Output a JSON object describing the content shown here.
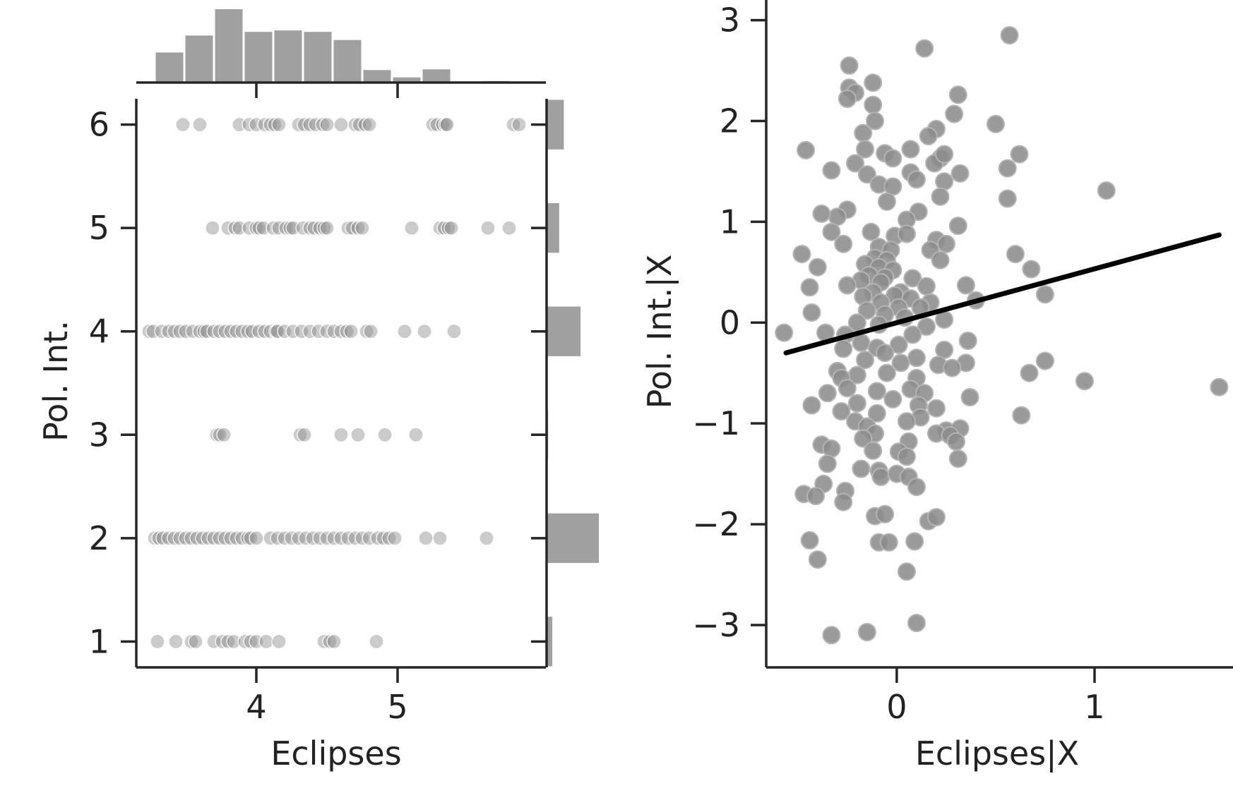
{
  "colors": {
    "axis": "#262626",
    "marker": "#8c8c8c",
    "marker_edge": "#9a9a9a",
    "hist": "#a0a0a0",
    "fit_line": "#000000"
  },
  "chart_data": [
    {
      "type": "scatter",
      "panel": "jointplot",
      "xlabel": "Eclipses",
      "ylabel": "Pol. Int.",
      "xlim": [
        3.15,
        6.05
      ],
      "ylim": [
        0.75,
        6.25
      ],
      "xticks": [
        4,
        5
      ],
      "xtick_labels": [
        "4",
        "5"
      ],
      "yticks": [
        1,
        2,
        3,
        4,
        5,
        6
      ],
      "ytick_labels": [
        "1",
        "2",
        "3",
        "4",
        "5",
        "6"
      ],
      "alpha": 0.45,
      "points": {
        "6": [
          3.48,
          3.6,
          3.88,
          3.95,
          4.0,
          4.06,
          4.1,
          4.13,
          4.16,
          4.3,
          4.34,
          4.38,
          4.42,
          4.47,
          4.5,
          4.6,
          4.7,
          4.73,
          4.77,
          4.8,
          5.25,
          5.28,
          5.32,
          5.34,
          5.35,
          5.82,
          5.86
        ],
        "5": [
          3.69,
          3.8,
          3.85,
          3.88,
          3.95,
          4.0,
          4.02,
          4.05,
          4.12,
          4.16,
          4.21,
          4.24,
          4.26,
          4.33,
          4.38,
          4.41,
          4.45,
          4.48,
          4.5,
          4.65,
          4.68,
          4.72,
          4.75,
          5.1,
          5.3,
          5.33,
          5.36,
          5.38,
          5.64,
          5.79
        ],
        "4": [
          3.24,
          3.27,
          3.33,
          3.38,
          3.42,
          3.46,
          3.5,
          3.55,
          3.6,
          3.63,
          3.65,
          3.7,
          3.74,
          3.78,
          3.82,
          3.86,
          3.9,
          3.94,
          3.97,
          4.02,
          4.06,
          4.1,
          4.14,
          4.15,
          4.2,
          4.26,
          4.32,
          4.38,
          4.44,
          4.5,
          4.55,
          4.6,
          4.64,
          4.67,
          4.78,
          4.81,
          5.05,
          5.19,
          5.4
        ],
        "3": [
          3.72,
          3.74,
          3.77,
          4.31,
          4.34,
          4.6,
          4.72,
          4.91,
          5.13
        ],
        "2": [
          3.28,
          3.31,
          3.34,
          3.38,
          3.42,
          3.46,
          3.5,
          3.54,
          3.58,
          3.62,
          3.66,
          3.7,
          3.74,
          3.78,
          3.82,
          3.86,
          3.9,
          3.94,
          3.96,
          4.0,
          4.1,
          4.15,
          4.2,
          4.25,
          4.3,
          4.35,
          4.4,
          4.45,
          4.5,
          4.55,
          4.6,
          4.65,
          4.7,
          4.75,
          4.8,
          4.86,
          4.9,
          4.94,
          4.98,
          5.2,
          5.3,
          5.63
        ],
        "1": [
          3.3,
          3.43,
          3.54,
          3.57,
          3.7,
          3.76,
          3.8,
          3.84,
          3.92,
          3.96,
          4.0,
          4.07,
          4.16,
          4.48,
          4.52,
          4.55,
          4.85
        ]
      },
      "marginal_x": {
        "bins": [
          3.28,
          3.49,
          3.7,
          3.91,
          4.12,
          4.33,
          4.54,
          4.75,
          4.96,
          5.17,
          5.38,
          5.59,
          5.8,
          6.01
        ],
        "heights": [
          0.41,
          0.64,
          1.0,
          0.69,
          0.71,
          0.69,
          0.58,
          0.17,
          0.07,
          0.18,
          0.0,
          0.02,
          0.0
        ]
      },
      "marginal_y": {
        "bins": [
          0.75,
          1.25,
          1.75,
          2.25,
          2.75,
          3.25,
          3.75,
          4.25,
          4.75,
          5.25,
          5.75,
          6.25
        ],
        "heights": [
          0.11,
          0.0,
          1.0,
          0.0,
          0.03,
          0.0,
          0.65,
          0.0,
          0.24,
          0.0,
          0.33
        ]
      }
    },
    {
      "type": "scatter",
      "panel": "partial-regression",
      "xlabel": "Eclipses|X",
      "ylabel": "Pol. Int.|X",
      "xlim": [
        -0.66,
        1.7
      ],
      "ylim": [
        -3.42,
        3.2
      ],
      "xticks": [
        0,
        1
      ],
      "xtick_labels": [
        "0",
        "1"
      ],
      "yticks": [
        -3,
        -2,
        -1,
        0,
        1,
        2,
        3
      ],
      "ytick_labels": [
        "−3",
        "−2",
        "−1",
        "0",
        "1",
        "2",
        "3"
      ],
      "fit_line": {
        "x": [
          -0.56,
          1.63
        ],
        "y": [
          -0.3,
          0.87
        ]
      },
      "points": [
        [
          0.57,
          2.85
        ],
        [
          0.14,
          2.72
        ],
        [
          -0.24,
          2.55
        ],
        [
          -0.12,
          2.38
        ],
        [
          -0.24,
          2.33
        ],
        [
          -0.21,
          2.28
        ],
        [
          -0.25,
          2.22
        ],
        [
          -0.12,
          2.16
        ],
        [
          0.31,
          2.26
        ],
        [
          -0.11,
          2.0
        ],
        [
          0.29,
          2.07
        ],
        [
          0.5,
          1.97
        ],
        [
          0.2,
          1.92
        ],
        [
          0.16,
          1.85
        ],
        [
          -0.17,
          1.88
        ],
        [
          -0.46,
          1.71
        ],
        [
          -0.16,
          1.72
        ],
        [
          0.07,
          1.72
        ],
        [
          -0.06,
          1.68
        ],
        [
          -0.02,
          1.63
        ],
        [
          0.22,
          1.63
        ],
        [
          0.19,
          1.58
        ],
        [
          0.24,
          1.67
        ],
        [
          0.62,
          1.67
        ],
        [
          0.56,
          1.53
        ],
        [
          -0.21,
          1.58
        ],
        [
          -0.33,
          1.51
        ],
        [
          0.07,
          1.49
        ],
        [
          0.1,
          1.42
        ],
        [
          0.32,
          1.48
        ],
        [
          -0.15,
          1.47
        ],
        [
          -0.09,
          1.37
        ],
        [
          -0.02,
          1.35
        ],
        [
          0.24,
          1.4
        ],
        [
          1.06,
          1.31
        ],
        [
          0.22,
          1.25
        ],
        [
          0.56,
          1.23
        ],
        [
          -0.05,
          1.2
        ],
        [
          -0.25,
          1.12
        ],
        [
          -0.3,
          1.05
        ],
        [
          -0.38,
          1.08
        ],
        [
          0.11,
          1.1
        ],
        [
          0.05,
          1.02
        ],
        [
          0.31,
          0.96
        ],
        [
          -0.33,
          0.9
        ],
        [
          -0.13,
          0.9
        ],
        [
          -0.01,
          0.86
        ],
        [
          0.05,
          0.88
        ],
        [
          0.2,
          0.82
        ],
        [
          0.25,
          0.78
        ],
        [
          -0.27,
          0.78
        ],
        [
          -0.09,
          0.75
        ],
        [
          -0.03,
          0.72
        ],
        [
          0.17,
          0.72
        ],
        [
          -0.48,
          0.68
        ],
        [
          0.6,
          0.68
        ],
        [
          0.22,
          0.62
        ],
        [
          -0.11,
          0.64
        ],
        [
          -0.05,
          0.62
        ],
        [
          -0.16,
          0.58
        ],
        [
          -0.09,
          0.55
        ],
        [
          -0.4,
          0.55
        ],
        [
          0.68,
          0.53
        ],
        [
          -0.02,
          0.52
        ],
        [
          -0.14,
          0.47
        ],
        [
          -0.06,
          0.45
        ],
        [
          0.08,
          0.44
        ],
        [
          -0.18,
          0.42
        ],
        [
          -0.08,
          0.4
        ],
        [
          0.15,
          0.36
        ],
        [
          -0.44,
          0.35
        ],
        [
          -0.25,
          0.37
        ],
        [
          0.35,
          0.37
        ],
        [
          -0.12,
          0.3
        ],
        [
          0.02,
          0.3
        ],
        [
          -0.01,
          0.27
        ],
        [
          0.75,
          0.28
        ],
        [
          -0.17,
          0.26
        ],
        [
          0.07,
          0.24
        ],
        [
          0.4,
          0.22
        ],
        [
          -0.08,
          0.2
        ],
        [
          0.17,
          0.2
        ],
        [
          0.01,
          0.15
        ],
        [
          0.12,
          0.15
        ],
        [
          -0.43,
          0.1
        ],
        [
          -0.15,
          0.12
        ],
        [
          -0.06,
          0.08
        ],
        [
          0.04,
          0.05
        ],
        [
          0.24,
          0.03
        ],
        [
          -0.2,
          0.0
        ],
        [
          -0.09,
          -0.02
        ],
        [
          0.15,
          -0.04
        ],
        [
          -0.57,
          -0.1
        ],
        [
          -0.36,
          -0.1
        ],
        [
          -0.26,
          -0.12
        ],
        [
          0.08,
          -0.12
        ],
        [
          0.36,
          -0.18
        ],
        [
          -0.18,
          -0.2
        ],
        [
          0.01,
          -0.22
        ],
        [
          -0.27,
          -0.26
        ],
        [
          -0.1,
          -0.25
        ],
        [
          0.24,
          -0.27
        ],
        [
          -0.06,
          -0.3
        ],
        [
          0.1,
          -0.35
        ],
        [
          0.35,
          -0.4
        ],
        [
          0.75,
          -0.38
        ],
        [
          -0.16,
          -0.37
        ],
        [
          0.02,
          -0.4
        ],
        [
          0.21,
          -0.42
        ],
        [
          0.28,
          -0.45
        ],
        [
          -0.3,
          -0.48
        ],
        [
          -0.2,
          -0.52
        ],
        [
          -0.05,
          -0.5
        ],
        [
          0.67,
          -0.5
        ],
        [
          -0.28,
          -0.55
        ],
        [
          0.1,
          -0.55
        ],
        [
          0.95,
          -0.58
        ],
        [
          1.63,
          -0.64
        ],
        [
          -0.25,
          -0.65
        ],
        [
          -0.1,
          -0.68
        ],
        [
          0.07,
          -0.66
        ],
        [
          -0.35,
          -0.7
        ],
        [
          0.14,
          -0.7
        ],
        [
          0.37,
          -0.74
        ],
        [
          -0.02,
          -0.76
        ],
        [
          -0.2,
          -0.8
        ],
        [
          -0.43,
          -0.82
        ],
        [
          0.11,
          -0.82
        ],
        [
          0.2,
          -0.85
        ],
        [
          -0.28,
          -0.88
        ],
        [
          -0.1,
          -0.9
        ],
        [
          0.63,
          -0.92
        ],
        [
          0.12,
          -0.94
        ],
        [
          -0.21,
          -0.98
        ],
        [
          0.05,
          -0.98
        ],
        [
          -0.15,
          -1.03
        ],
        [
          0.25,
          -1.07
        ],
        [
          0.32,
          -1.05
        ],
        [
          -0.11,
          -1.1
        ],
        [
          0.2,
          -1.1
        ],
        [
          0.27,
          -1.12
        ],
        [
          -0.17,
          -1.15
        ],
        [
          0.06,
          -1.18
        ],
        [
          0.3,
          -1.18
        ],
        [
          -0.38,
          -1.21
        ],
        [
          -0.33,
          -1.25
        ],
        [
          -0.12,
          -1.27
        ],
        [
          0.01,
          -1.28
        ],
        [
          0.05,
          -1.33
        ],
        [
          -0.35,
          -1.4
        ],
        [
          -0.18,
          -1.45
        ],
        [
          -0.09,
          -1.47
        ],
        [
          0.31,
          -1.35
        ],
        [
          -0.08,
          -1.53
        ],
        [
          0.0,
          -1.5
        ],
        [
          0.06,
          -1.53
        ],
        [
          -0.37,
          -1.6
        ],
        [
          0.1,
          -1.63
        ],
        [
          -0.47,
          -1.7
        ],
        [
          -0.41,
          -1.72
        ],
        [
          -0.26,
          -1.67
        ],
        [
          -0.27,
          -1.78
        ],
        [
          -0.11,
          -1.92
        ],
        [
          0.16,
          -1.97
        ],
        [
          0.2,
          -1.93
        ],
        [
          -0.06,
          -1.9
        ],
        [
          -0.44,
          -2.16
        ],
        [
          -0.09,
          -2.18
        ],
        [
          -0.04,
          -2.18
        ],
        [
          0.09,
          -2.17
        ],
        [
          -0.4,
          -2.35
        ],
        [
          0.05,
          -2.47
        ],
        [
          0.1,
          -2.98
        ],
        [
          -0.15,
          -3.07
        ],
        [
          -0.33,
          -3.1
        ]
      ]
    }
  ]
}
